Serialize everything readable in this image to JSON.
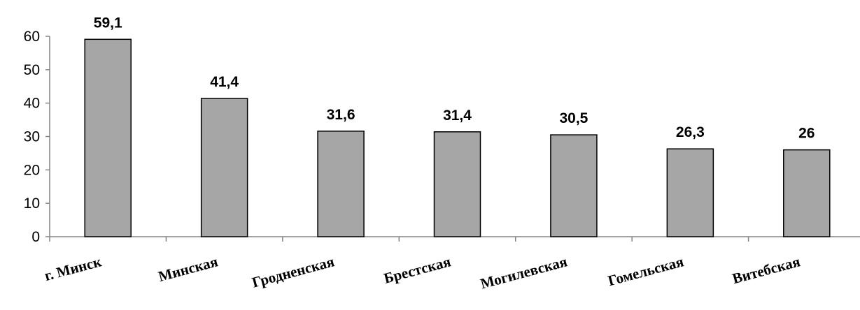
{
  "chart_data": {
    "type": "bar",
    "title": "",
    "xlabel": "",
    "ylabel": "",
    "categories": [
      "г. Минск",
      "Минская",
      "Гродненская",
      "Брестская",
      "Могилевская",
      "Гомельская",
      "Витебская"
    ],
    "values": [
      59.1,
      41.4,
      31.6,
      31.4,
      30.5,
      26.3,
      26
    ],
    "data_labels": [
      "59,1",
      "41,4",
      "31,6",
      "31,4",
      "30,5",
      "26,3",
      "26"
    ],
    "y_ticks": [
      0,
      10,
      20,
      30,
      40,
      50,
      60
    ],
    "ylim": [
      0,
      60
    ],
    "grid": false,
    "legend": "none",
    "colors": {
      "bar_fill": "#a6a6a6",
      "bar_stroke": "#000000",
      "axis": "#868686"
    }
  }
}
